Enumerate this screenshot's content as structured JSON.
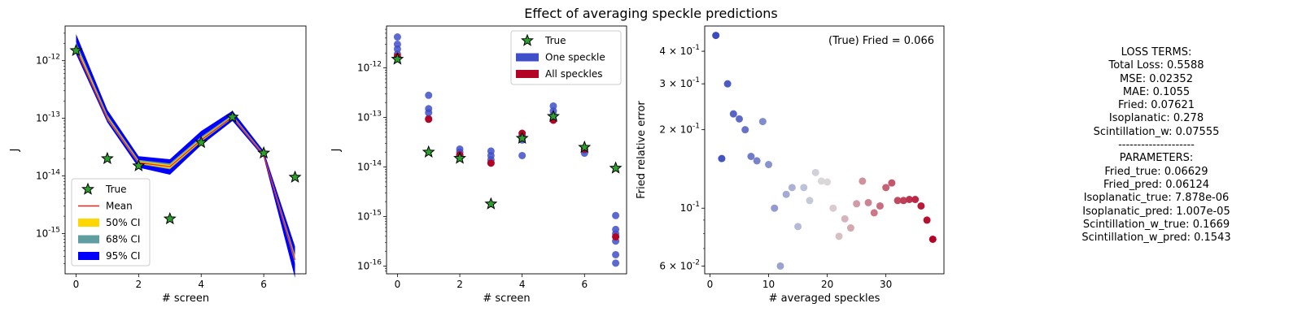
{
  "figure": {
    "title": "Effect of averaging speckle predictions"
  },
  "chart_data": [
    {
      "type": "line",
      "xlabel": "# screen",
      "ylabel": "J",
      "yscale": "log",
      "xlim": [
        -0.35,
        7.35
      ],
      "ylim": [
        2e-16,
        4e-12
      ],
      "xticks": [
        0,
        2,
        4,
        6
      ],
      "yticks": [
        {
          "value": 1e-15,
          "label": "10^-15"
        },
        {
          "value": 1e-14,
          "label": "10^-14"
        },
        {
          "value": 1e-13,
          "label": "10^-13"
        },
        {
          "value": 1e-12,
          "label": "10^-12"
        }
      ],
      "x": [
        0,
        1,
        2,
        3,
        4,
        5,
        6,
        7
      ],
      "true": [
        1.5e-12,
        2e-14,
        1.5e-14,
        1.8e-15,
        3.8e-14,
        1.05e-13,
        2.5e-14,
        9.5e-15
      ],
      "mean": [
        1.6e-12,
        1e-13,
        1.7e-14,
        1.45e-14,
        4.2e-14,
        1.05e-13,
        2.3e-14,
        3.5e-16
      ],
      "ci95": {
        "lower": [
          1.3e-12,
          8.5e-14,
          1.4e-14,
          1.05e-14,
          3.4e-14,
          9e-14,
          2.1e-14,
          1.7e-16
        ],
        "upper": [
          2.9e-12,
          1.4e-13,
          2.2e-14,
          1.95e-14,
          6e-14,
          1.35e-13,
          2.7e-14,
          6e-16
        ]
      },
      "ci68": {
        "lower": [
          1.5e-12,
          9.3e-14,
          1.6e-14,
          1.3e-14,
          3.9e-14,
          1e-13,
          2.2e-14,
          3e-16
        ],
        "upper": [
          2.1e-12,
          1.15e-13,
          1.9e-14,
          1.65e-14,
          4.8e-14,
          1.15e-13,
          2.45e-14,
          4.3e-16
        ]
      },
      "ci50": {
        "lower": [
          1.6e-12,
          9.7e-14,
          1.65e-14,
          1.35e-14,
          4e-14,
          1.03e-13,
          2.25e-14,
          3.3e-16
        ],
        "upper": [
          1.85e-12,
          1.08e-13,
          1.8e-14,
          1.55e-14,
          4.5e-14,
          1.1e-13,
          2.4e-14,
          3.9e-16
        ]
      },
      "legend": {
        "position": "lower-left",
        "entries": [
          "True",
          "Mean",
          "50% CI",
          "68% CI",
          "95% CI"
        ]
      },
      "colors": {
        "true": "#2ca02c",
        "mean": "#e8241c",
        "ci50": "#ffd700",
        "ci68": "#5f9ea0",
        "ci95": "#0000ff"
      }
    },
    {
      "type": "scatter",
      "xlabel": "# screen",
      "ylabel": "J",
      "yscale": "log",
      "xlim": [
        -0.35,
        7.35
      ],
      "ylim": [
        7e-17,
        7e-12
      ],
      "xticks": [
        0,
        2,
        4,
        6
      ],
      "yticks": [
        {
          "value": 1e-16,
          "label": "10^-16"
        },
        {
          "value": 1e-15,
          "label": "10^-15"
        },
        {
          "value": 1e-14,
          "label": "10^-14"
        },
        {
          "value": 1e-13,
          "label": "10^-13"
        },
        {
          "value": 1e-12,
          "label": "10^-12"
        }
      ],
      "one_speckle": [
        {
          "x": 0,
          "y": [
            4.2e-12,
            3e-12,
            2.4e-12,
            1.9e-12
          ]
        },
        {
          "x": 1,
          "y": [
            2.8e-13,
            1.5e-13,
            1.25e-13,
            9.5e-14
          ]
        },
        {
          "x": 2,
          "y": [
            2.3e-14,
            2e-14,
            1.7e-14
          ]
        },
        {
          "x": 3,
          "y": [
            2.1e-14,
            1.7e-14,
            1.4e-14,
            1.2e-14
          ]
        },
        {
          "x": 4,
          "y": [
            1.7e-14,
            3.5e-14,
            4.2e-14
          ]
        },
        {
          "x": 5,
          "y": [
            1.7e-13,
            1.35e-13,
            1.1e-13,
            9e-14
          ]
        },
        {
          "x": 6,
          "y": [
            1.9e-14,
            2.2e-14
          ]
        },
        {
          "x": 7,
          "y": [
            1.05e-15,
            5.5e-16,
            4.5e-16,
            3.2e-16,
            1.7e-16,
            1.15e-16
          ]
        }
      ],
      "all_speckles": [
        1.7e-12,
        9.2e-14,
        1.75e-14,
        1.2e-14,
        4.8e-14,
        8.8e-14,
        2.3e-14,
        3.9e-16
      ],
      "true": [
        1.5e-12,
        2e-14,
        1.5e-14,
        1.8e-15,
        3.8e-14,
        1.05e-13,
        2.5e-14,
        9.5e-15
      ],
      "legend": {
        "position": "upper-right",
        "entries": [
          "True",
          "One speckle",
          "All speckles"
        ]
      },
      "colors": {
        "true": "#2ca02c",
        "one": "#3f4fc9",
        "all": "#b40426"
      }
    },
    {
      "type": "scatter",
      "xlabel": "# averaged speckles",
      "ylabel": "Fried relative error",
      "yscale": "log",
      "xlim": [
        -0.9,
        39.9
      ],
      "ylim": [
        0.056,
        0.5
      ],
      "xticks": [
        0,
        10,
        20,
        30
      ],
      "yticks": [
        {
          "value": 0.06,
          "label": "6 × 10^-2"
        },
        {
          "value": 0.1,
          "label": "10^-1"
        },
        {
          "value": 0.2,
          "label": "2 × 10^-1"
        },
        {
          "value": 0.3,
          "label": "3 × 10^-1"
        },
        {
          "value": 0.4,
          "label": "4 × 10^-1"
        }
      ],
      "annotation": "(True) Fried = 0.066",
      "x": [
        1,
        2,
        3,
        4,
        5,
        6,
        7,
        8,
        9,
        10,
        11,
        12,
        13,
        14,
        15,
        16,
        17,
        18,
        19,
        20,
        21,
        22,
        23,
        24,
        25,
        26,
        27,
        28,
        29,
        30,
        31,
        32,
        33,
        34,
        35,
        36,
        37,
        38
      ],
      "y": [
        0.46,
        0.155,
        0.3,
        0.23,
        0.22,
        0.2,
        0.158,
        0.152,
        0.215,
        0.147,
        0.1,
        0.06,
        0.113,
        0.12,
        0.085,
        0.12,
        0.107,
        0.137,
        0.127,
        0.126,
        0.1,
        0.078,
        0.091,
        0.084,
        0.104,
        0.127,
        0.105,
        0.096,
        0.102,
        0.12,
        0.125,
        0.107,
        0.107,
        0.108,
        0.108,
        0.102,
        0.09,
        0.076
      ],
      "colormap": "coolwarm"
    }
  ],
  "loss_panel": {
    "lines": [
      "LOSS TERMS:",
      "Total Loss: 0.5588",
      "MSE: 0.02352",
      "MAE: 0.1055",
      "Fried: 0.07621",
      "Isoplanatic: 0.278",
      "Scintillation_w: 0.07555",
      "--------------------",
      "PARAMETERS:",
      "Fried_true: 0.06629",
      "Fried_pred: 0.06124",
      "Isoplanatic_true: 7.878e-06",
      "Isoplanatic_pred: 1.007e-05",
      "Scintillation_w_true: 0.1669",
      "Scintillation_w_pred: 0.1543"
    ]
  }
}
